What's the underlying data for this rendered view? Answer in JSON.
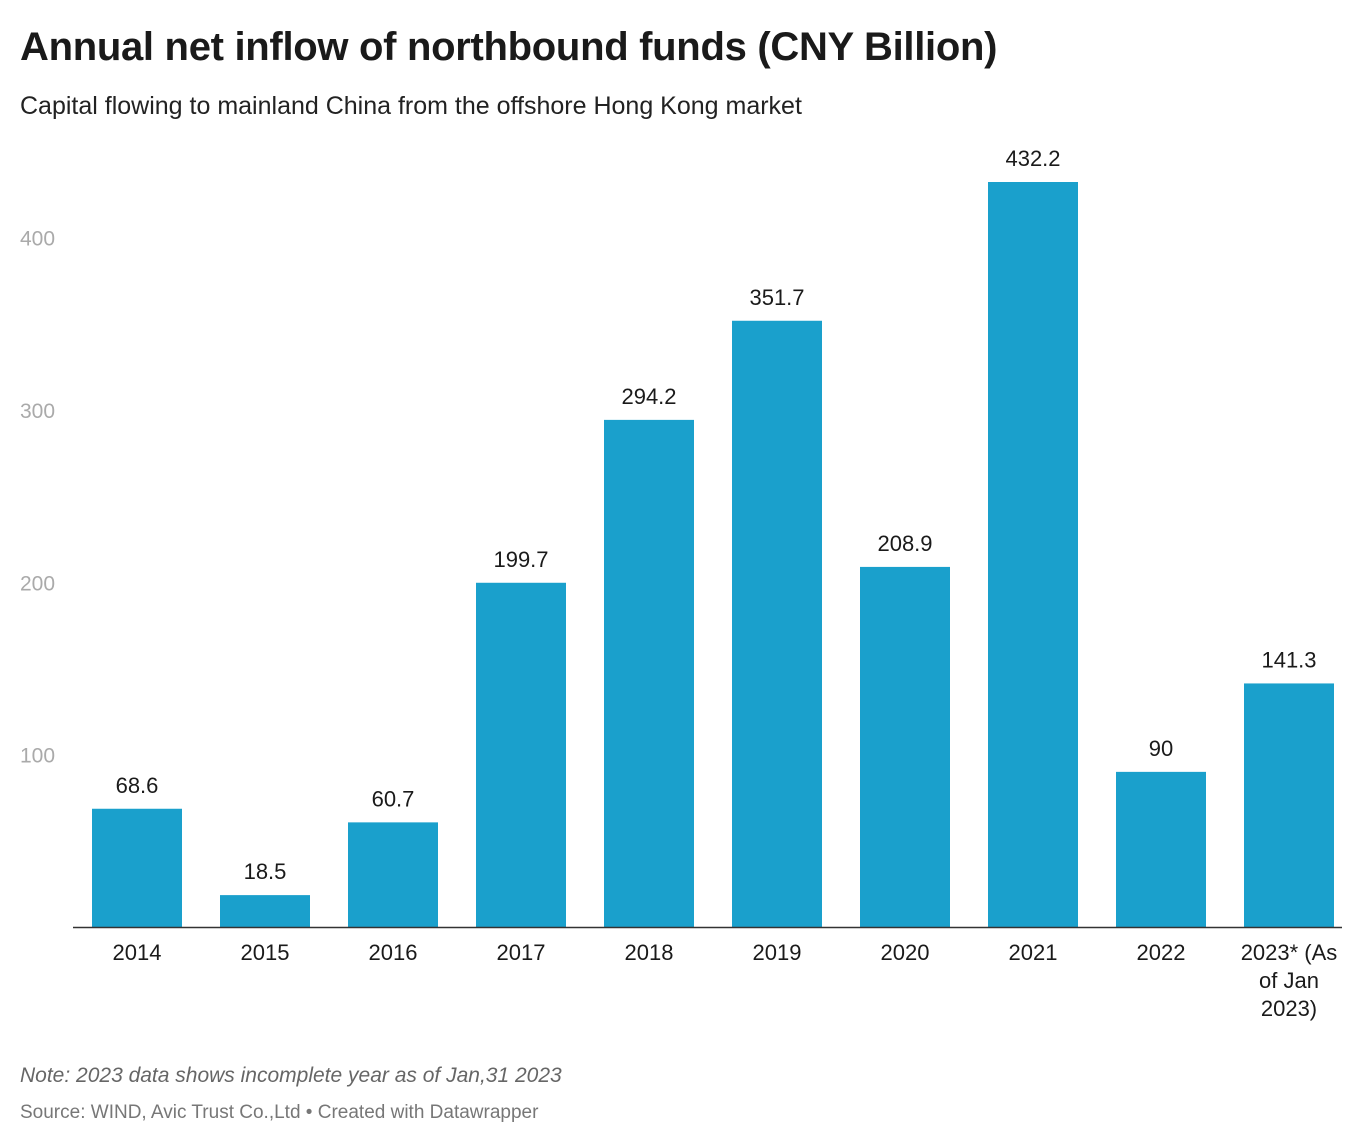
{
  "header": {
    "title": "Annual net inflow of northbound funds (CNY Billion)",
    "subtitle": "Capital flowing to mainland China from the offshore Hong Kong market"
  },
  "footer": {
    "note": "Note: 2023 data shows incomplete year as of Jan,31 2023",
    "source": "Source: WIND, Avic Trust Co.,Ltd • Created with Datawrapper"
  },
  "colors": {
    "bar": "#1aa0cc",
    "tick_label": "#aaaaaa",
    "axis": "#333333"
  },
  "chart_data": {
    "type": "bar",
    "title": "Annual net inflow of northbound funds (CNY Billion)",
    "subtitle": "Capital flowing to mainland China from the offshore Hong Kong market",
    "xlabel": "",
    "ylabel": "",
    "categories": [
      "2014",
      "2015",
      "2016",
      "2017",
      "2018",
      "2019",
      "2020",
      "2021",
      "2022",
      "2023* (As of Jan 2023)"
    ],
    "category_lines": [
      [
        "2014"
      ],
      [
        "2015"
      ],
      [
        "2016"
      ],
      [
        "2017"
      ],
      [
        "2018"
      ],
      [
        "2019"
      ],
      [
        "2020"
      ],
      [
        "2021"
      ],
      [
        "2022"
      ],
      [
        "2023* (As",
        "of Jan",
        "2023)"
      ]
    ],
    "values": [
      68.6,
      18.5,
      60.7,
      199.7,
      294.2,
      351.7,
      208.9,
      432.2,
      90,
      141.3
    ],
    "value_labels": [
      "68.6",
      "18.5",
      "60.7",
      "199.7",
      "294.2",
      "351.7",
      "208.9",
      "432.2",
      "90",
      "141.3"
    ],
    "yticks": [
      100,
      200,
      300,
      400
    ],
    "ylim": [
      0,
      432.2
    ],
    "grid": false,
    "legend": "none",
    "data_labels": "above bars"
  }
}
